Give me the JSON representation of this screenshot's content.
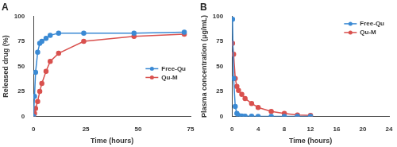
{
  "chart_data": [
    {
      "type": "line",
      "title": "A",
      "x_label": "Time (hours)",
      "y_label": "Released drug (%)",
      "x": [
        0,
        0.5,
        1,
        2,
        3,
        4,
        6,
        8,
        12,
        24,
        48,
        72
      ],
      "series": [
        {
          "name": "Free-Qu",
          "color": "#3b8ad4",
          "marker": "circle",
          "values": [
            0,
            20,
            44,
            64,
            73,
            75,
            78,
            81,
            83,
            83,
            83,
            84
          ]
        },
        {
          "name": "Qu-M",
          "color": "#d9514e",
          "marker": "circle",
          "values": [
            0,
            3,
            8,
            15,
            25,
            33,
            45,
            55,
            63,
            75,
            80,
            82
          ]
        }
      ],
      "xlim": [
        0,
        75
      ],
      "xticks": [
        0,
        25,
        50,
        75
      ],
      "ylim": [
        0,
        100
      ],
      "yticks": [
        0,
        25,
        50,
        75,
        100
      ],
      "grid": false,
      "legend": "lower right"
    },
    {
      "type": "line",
      "title": "B",
      "x_label": "Time (hours)",
      "y_label": "Plasma concentration (μg/mL)",
      "x": [
        0.083,
        0.25,
        0.5,
        0.75,
        1,
        1.5,
        2,
        3,
        4,
        6,
        8,
        10,
        12
      ],
      "series": [
        {
          "name": "Free-Qu",
          "color": "#3b8ad4",
          "marker": "circle",
          "values": [
            97,
            38,
            10,
            3,
            1,
            0.5,
            0.3,
            0.2,
            0.1,
            0,
            0,
            0,
            0
          ]
        },
        {
          "name": "Qu-M",
          "color": "#d9514e",
          "marker": "circle",
          "values": [
            73,
            62,
            38,
            30,
            26,
            22,
            18,
            13,
            9,
            5,
            3,
            1.5,
            1
          ]
        }
      ],
      "xlim": [
        0,
        24
      ],
      "xticks": [
        0,
        4,
        8,
        12,
        16,
        20,
        24
      ],
      "ylim": [
        0,
        100
      ],
      "yticks": [
        0,
        25,
        50,
        75,
        100
      ],
      "grid": false,
      "legend": "upper right"
    }
  ]
}
